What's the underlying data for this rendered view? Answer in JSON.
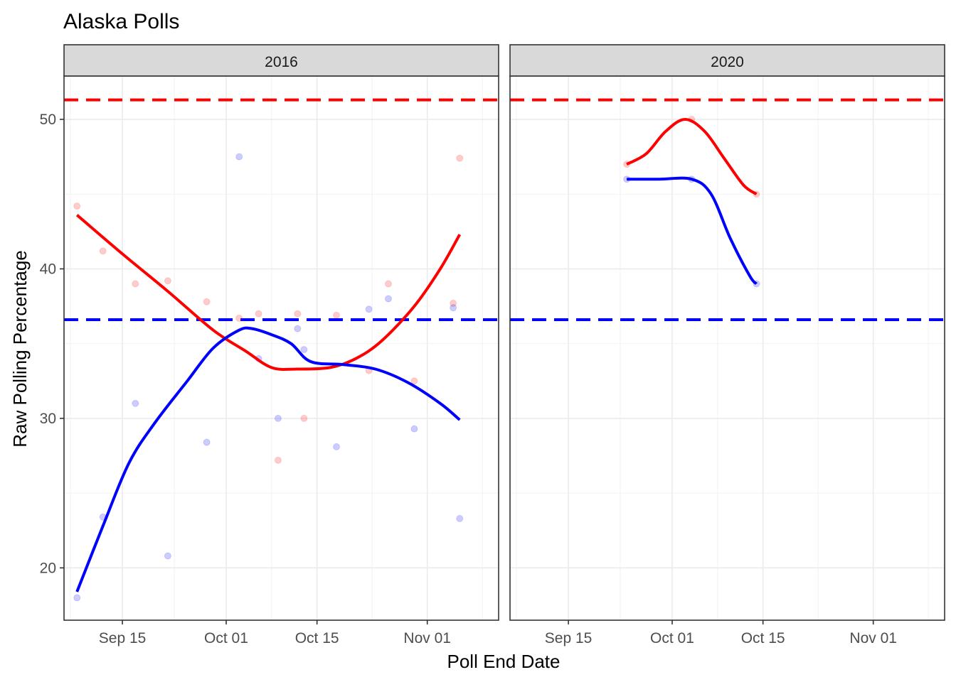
{
  "chart_data": {
    "type": "scatter",
    "title": "Alaska Polls",
    "xlabel": "Poll End Date",
    "ylabel": "Raw Polling Percentage",
    "x_scale": "date",
    "xlim": [
      "2016-09-06",
      "2016-11-12"
    ],
    "ylim": [
      16.5,
      52.9
    ],
    "x_ticks": [
      "Sep 15",
      "Oct 01",
      "Oct 15",
      "Nov 01"
    ],
    "x_tick_values": [
      "2016-09-15",
      "2016-10-01",
      "2016-10-15",
      "2016-11-01"
    ],
    "y_ticks": [
      20,
      30,
      40,
      50
    ],
    "grid": true,
    "legend": "none",
    "colors": {
      "rep": "#ff0000",
      "dem": "#0000ff"
    },
    "reference_lines": [
      {
        "party": "rep",
        "y": 51.3,
        "style": "dashed"
      },
      {
        "party": "dem",
        "y": 36.6,
        "style": "dashed"
      }
    ],
    "facets": [
      {
        "label": "2016",
        "points": {
          "rep": [
            [
              "2016-09-08",
              44.2
            ],
            [
              "2016-09-12",
              41.2
            ],
            [
              "2016-09-17",
              39.0
            ],
            [
              "2016-09-22",
              39.2
            ],
            [
              "2016-09-28",
              37.8
            ],
            [
              "2016-10-03",
              36.7
            ],
            [
              "2016-10-06",
              37.0
            ],
            [
              "2016-10-09",
              27.2
            ],
            [
              "2016-10-12",
              37.0
            ],
            [
              "2016-10-13",
              30.0
            ],
            [
              "2016-10-18",
              36.9
            ],
            [
              "2016-10-23",
              33.2
            ],
            [
              "2016-10-26",
              39.0
            ],
            [
              "2016-10-30",
              32.5
            ],
            [
              "2016-11-05",
              37.7
            ],
            [
              "2016-11-06",
              47.4
            ]
          ],
          "dem": [
            [
              "2016-09-08",
              18.0
            ],
            [
              "2016-09-12",
              23.4
            ],
            [
              "2016-09-17",
              31.0
            ],
            [
              "2016-09-22",
              20.8
            ],
            [
              "2016-09-28",
              28.4
            ],
            [
              "2016-10-03",
              47.5
            ],
            [
              "2016-10-06",
              34.0
            ],
            [
              "2016-10-09",
              30.0
            ],
            [
              "2016-10-12",
              36.0
            ],
            [
              "2016-10-13",
              34.6
            ],
            [
              "2016-10-18",
              28.1
            ],
            [
              "2016-10-23",
              37.3
            ],
            [
              "2016-10-26",
              38.0
            ],
            [
              "2016-10-30",
              29.3
            ],
            [
              "2016-11-05",
              37.4
            ],
            [
              "2016-11-06",
              23.3
            ]
          ]
        },
        "trend": {
          "rep": [
            [
              "2016-09-08",
              43.6
            ],
            [
              "2016-09-15",
              41.0
            ],
            [
              "2016-09-22",
              38.5
            ],
            [
              "2016-09-29",
              35.9
            ],
            [
              "2016-10-04",
              34.5
            ],
            [
              "2016-10-08",
              33.4
            ],
            [
              "2016-10-12",
              33.3
            ],
            [
              "2016-10-17",
              33.4
            ],
            [
              "2016-10-21",
              34.0
            ],
            [
              "2016-10-25",
              35.2
            ],
            [
              "2016-10-30",
              37.5
            ],
            [
              "2016-11-03",
              40.0
            ],
            [
              "2016-11-06",
              42.3
            ]
          ],
          "dem": [
            [
              "2016-09-08",
              18.4
            ],
            [
              "2016-09-12",
              22.8
            ],
            [
              "2016-09-16",
              27.0
            ],
            [
              "2016-09-20",
              29.7
            ],
            [
              "2016-09-25",
              32.5
            ],
            [
              "2016-09-29",
              34.7
            ],
            [
              "2016-10-03",
              35.9
            ],
            [
              "2016-10-05",
              36.0
            ],
            [
              "2016-10-08",
              35.6
            ],
            [
              "2016-10-11",
              35.0
            ],
            [
              "2016-10-14",
              33.8
            ],
            [
              "2016-10-19",
              33.6
            ],
            [
              "2016-10-24",
              33.3
            ],
            [
              "2016-10-29",
              32.4
            ],
            [
              "2016-11-03",
              31.0
            ],
            [
              "2016-11-06",
              29.9
            ]
          ]
        }
      },
      {
        "label": "2020",
        "points": {
          "rep": [
            [
              "2016-09-24",
              47.0
            ],
            [
              "2016-10-04",
              50.0
            ],
            [
              "2016-10-14",
              45.0
            ]
          ],
          "dem": [
            [
              "2016-09-24",
              46.0
            ],
            [
              "2016-10-04",
              46.0
            ],
            [
              "2016-10-14",
              39.0
            ]
          ]
        },
        "trend": {
          "rep": [
            [
              "2016-09-24",
              47.0
            ],
            [
              "2016-09-27",
              47.7
            ],
            [
              "2016-09-30",
              49.2
            ],
            [
              "2016-10-03",
              50.0
            ],
            [
              "2016-10-06",
              49.2
            ],
            [
              "2016-10-09",
              47.4
            ],
            [
              "2016-10-12",
              45.6
            ],
            [
              "2016-10-14",
              45.0
            ]
          ],
          "dem": [
            [
              "2016-09-24",
              46.0
            ],
            [
              "2016-09-29",
              46.0
            ],
            [
              "2016-10-04",
              46.0
            ],
            [
              "2016-10-07",
              45.0
            ],
            [
              "2016-10-10",
              42.0
            ],
            [
              "2016-10-13",
              39.5
            ],
            [
              "2016-10-14",
              39.0
            ]
          ]
        }
      }
    ]
  }
}
